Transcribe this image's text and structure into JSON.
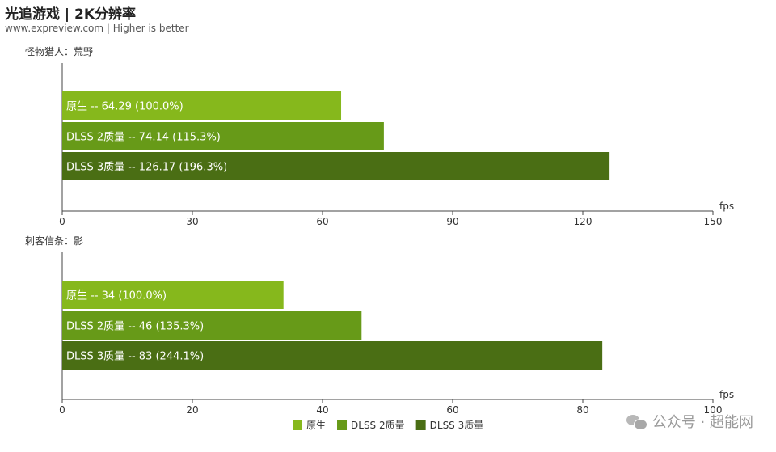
{
  "header": {
    "title": "光追游戏 | 2K分辨率",
    "subtitle": "www.expreview.com | Higher is better"
  },
  "watermark": {
    "text": "公众号 · 超能网",
    "icon": "wechat-icon"
  },
  "colors": {
    "native": "#86b81c",
    "dlss2": "#679a18",
    "dlss3": "#4a6e14",
    "axis": "#444444",
    "label_text": "#ffffff"
  },
  "chart_data": [
    {
      "type": "bar",
      "orientation": "horizontal",
      "title": "怪物猎人：荒野",
      "xlabel": "fps",
      "xlim": [
        0,
        150
      ],
      "xticks": [
        0,
        30,
        60,
        90,
        120,
        150
      ],
      "categories": [
        "原生",
        "DLSS 2质量",
        "DLSS 3质量"
      ],
      "values": [
        64.29,
        74.14,
        126.17
      ],
      "bar_labels": [
        "原生  --  64.29 (100.0%)",
        "DLSS 2质量  --  74.14 (115.3%)",
        "DLSS 3质量  --  126.17 (196.3%)"
      ]
    },
    {
      "type": "bar",
      "orientation": "horizontal",
      "title": "刺客信条：影",
      "xlabel": "fps",
      "xlim": [
        0,
        100
      ],
      "xticks": [
        0,
        20,
        40,
        60,
        80,
        100
      ],
      "categories": [
        "原生",
        "DLSS 2质量",
        "DLSS 3质量"
      ],
      "values": [
        34,
        46,
        83
      ],
      "bar_labels": [
        "原生  --  34 (100.0%)",
        "DLSS 2质量  --  46 (135.3%)",
        "DLSS 3质量  --  83 (244.1%)"
      ]
    }
  ],
  "legend": {
    "position": "bottom-center",
    "items": [
      {
        "label": "原生",
        "color": "#86b81c"
      },
      {
        "label": "DLSS 2质量",
        "color": "#679a18"
      },
      {
        "label": "DLSS 3质量",
        "color": "#4a6e14"
      }
    ]
  }
}
